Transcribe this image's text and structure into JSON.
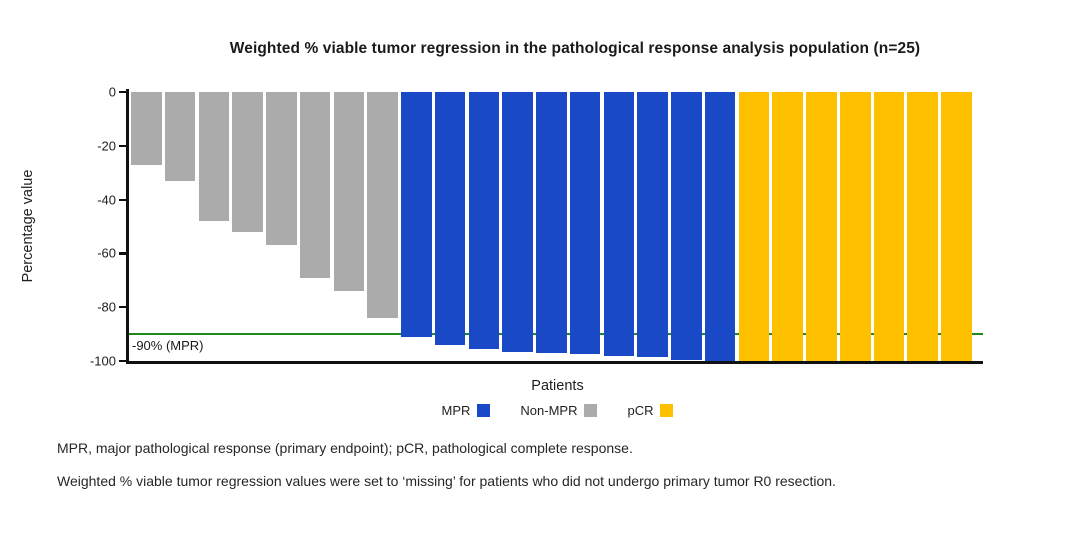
{
  "title": "Weighted % viable tumor regression in the pathological response analysis population (n=25)",
  "chart_data": {
    "type": "bar",
    "subtype": "waterfall",
    "title": "Weighted % viable tumor regression in the pathological response analysis population (n=25)",
    "xlabel": "Patients",
    "ylabel": "Percentage value",
    "ylim": [
      -100,
      0
    ],
    "yticks": [
      0,
      -20,
      -40,
      -60,
      -80,
      -100
    ],
    "ytick_labels": [
      "0",
      "-20",
      "-40",
      "-60",
      "-80",
      "-100"
    ],
    "grid": false,
    "n_patients": 25,
    "values": [
      -27,
      -33,
      -48,
      -52,
      -57,
      -69,
      -74,
      -84,
      -91,
      -94,
      -95.5,
      -96.5,
      -97,
      -97.5,
      -98,
      -98.5,
      -99.5,
      -100,
      -100,
      -100,
      -100,
      -100,
      -100,
      -100,
      -100
    ],
    "bar_groups": [
      "Non-MPR",
      "Non-MPR",
      "Non-MPR",
      "Non-MPR",
      "Non-MPR",
      "Non-MPR",
      "Non-MPR",
      "Non-MPR",
      "MPR",
      "MPR",
      "MPR",
      "MPR",
      "MPR",
      "MPR",
      "MPR",
      "MPR",
      "MPR",
      "MPR",
      "pCR",
      "pCR",
      "pCR",
      "pCR",
      "pCR",
      "pCR",
      "pCR"
    ],
    "group_colors": {
      "MPR": "#1A49C8",
      "Non-MPR": "#ABABAB",
      "pCR": "#FFC000"
    },
    "reference_line": {
      "value": -90,
      "label": "-90% (MPR)",
      "color": "#1E8A1E"
    },
    "legend": [
      {
        "label": "MPR",
        "color": "#1A49C8"
      },
      {
        "label": "Non-MPR",
        "color": "#ABABAB"
      },
      {
        "label": "pCR",
        "color": "#FFC000"
      }
    ],
    "legend_position": "bottom"
  },
  "footnotes": [
    "MPR, major pathological response (primary endpoint); pCR, pathological complete response.",
    "Weighted % viable tumor regression values were set to ‘missing’ for patients who did not undergo primary tumor R0 resection."
  ]
}
